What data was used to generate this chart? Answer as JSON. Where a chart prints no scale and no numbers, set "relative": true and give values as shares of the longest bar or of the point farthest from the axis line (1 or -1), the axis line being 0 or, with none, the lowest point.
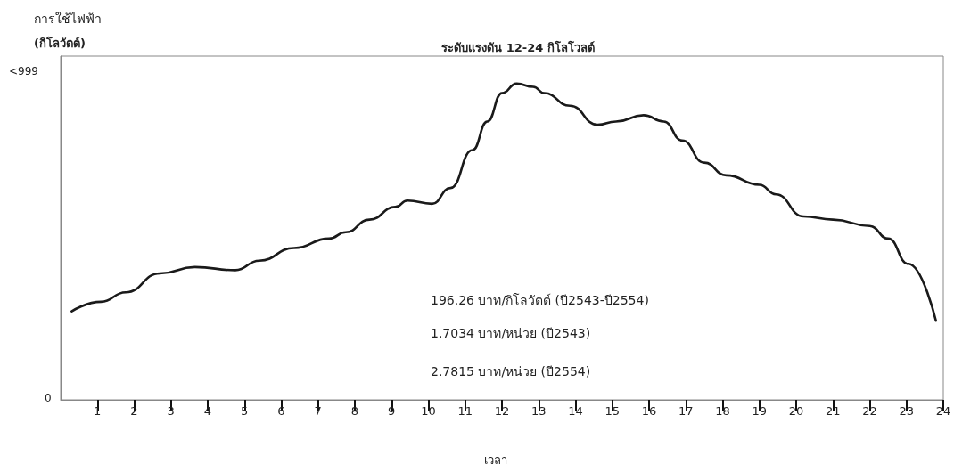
{
  "chart_data": {
    "type": "line",
    "title": "ระดับแรงดัน 12-24 กิโลโวลต์",
    "ylabel": "การใช้ไฟฟ้า\n(กิโลวัตต์)",
    "xlabel": "เวลา",
    "annotations": [
      "<999",
      "0",
      "196.26 บาท/กิโลวัตต์ (ปี2543-ปี2554)",
      "1.7034 บาท/หน่วย (ปี2543)",
      "2.7815 บาท/หน่วย (ปี2554)"
    ],
    "x": [
      0.3,
      1.1,
      1.77,
      2.7,
      3.65,
      4.75,
      5.4,
      6.35,
      7.3,
      7.75,
      8.4,
      9.1,
      9.43,
      10.1,
      10.6,
      11.2,
      11.6,
      12.0,
      12.4,
      12.85,
      13.15,
      13.85,
      14.6,
      15.1,
      15.85,
      16.4,
      16.9,
      17.5,
      18.1,
      19.0,
      19.45,
      20.2,
      21.0,
      22.0,
      22.5,
      23.05,
      23.8
    ],
    "series": [
      {
        "color": "#1a1a1a",
        "values": [
          0.28,
          0.31,
          0.34,
          0.4,
          0.42,
          0.41,
          0.44,
          0.48,
          0.51,
          0.53,
          0.57,
          0.61,
          0.63,
          0.62,
          0.67,
          0.79,
          0.88,
          0.97,
          1,
          0.99,
          0.97,
          0.93,
          0.87,
          0.88,
          0.9,
          0.88,
          0.82,
          0.75,
          0.71,
          0.68,
          0.65,
          0.58,
          0.57,
          0.55,
          0.51,
          0.43,
          0.25
        ]
      }
    ],
    "relative": true,
    "xlim": [
      0,
      24
    ],
    "xticks": [
      1,
      2,
      3,
      4,
      5,
      6,
      7,
      8,
      9,
      10,
      11,
      12,
      13,
      14,
      15,
      16,
      17,
      18,
      19,
      20,
      21,
      22,
      23,
      24
    ],
    "grid": false,
    "marker": "none",
    "line_style": "solid"
  }
}
